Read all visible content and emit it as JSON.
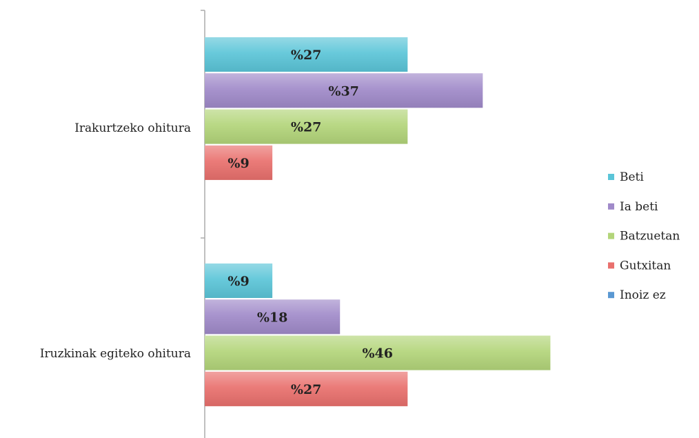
{
  "chart_data": {
    "type": "bar",
    "orientation": "horizontal",
    "categories": [
      "Irakurtzeko ohitura",
      "Iruzkinak egiteko ohitura"
    ],
    "series": [
      {
        "name": "Beti",
        "color": "#5bc5d8",
        "values": [
          27,
          9
        ],
        "labels": [
          "%27",
          "%9"
        ]
      },
      {
        "name": "Ia beti",
        "color": "#a08ac9",
        "values": [
          37,
          18
        ],
        "labels": [
          "%37",
          "%18"
        ]
      },
      {
        "name": "Batzuetan",
        "color": "#b3d57a",
        "values": [
          27,
          46
        ],
        "labels": [
          "%27",
          "%46"
        ]
      },
      {
        "name": "Gutxitan",
        "color": "#e9706d",
        "values": [
          9,
          27
        ],
        "labels": [
          "%9",
          "%27"
        ]
      },
      {
        "name": "Inoiz ez",
        "color": "#5a98d2",
        "values": [
          0,
          0
        ],
        "labels": [
          "",
          ""
        ]
      }
    ],
    "xlim": [
      0,
      50
    ],
    "grid": false,
    "legend_position": "right"
  }
}
